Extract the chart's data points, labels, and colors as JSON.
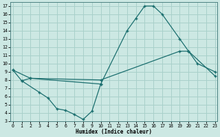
{
  "xlabel": "Humidex (Indice chaleur)",
  "bg_color": "#cce8e3",
  "grid_color": "#a8d0ca",
  "line_color": "#1a6e6e",
  "xlim": [
    -0.3,
    23.3
  ],
  "ylim": [
    3,
    17.5
  ],
  "xticks": [
    0,
    1,
    2,
    3,
    4,
    5,
    6,
    7,
    8,
    9,
    10,
    11,
    12,
    13,
    14,
    15,
    16,
    17,
    18,
    19,
    20,
    21,
    22,
    23
  ],
  "yticks": [
    3,
    4,
    5,
    6,
    7,
    8,
    9,
    10,
    11,
    12,
    13,
    14,
    15,
    16,
    17
  ],
  "line1_x": [
    0,
    1,
    2,
    10,
    13,
    14,
    15,
    16,
    17,
    19,
    20,
    21,
    23
  ],
  "line1_y": [
    9.2,
    7.9,
    8.2,
    7.5,
    14.0,
    15.5,
    17.0,
    17.0,
    16.0,
    13.0,
    11.5,
    10.0,
    9.0
  ],
  "line2_x": [
    0,
    2,
    10,
    19,
    20,
    23
  ],
  "line2_y": [
    9.2,
    8.2,
    8.0,
    11.5,
    11.5,
    8.5
  ],
  "line3_x": [
    1,
    3,
    4,
    5,
    6,
    7,
    8,
    9,
    10
  ],
  "line3_y": [
    7.9,
    6.5,
    5.8,
    4.5,
    4.3,
    3.8,
    3.2,
    4.2,
    7.5
  ]
}
